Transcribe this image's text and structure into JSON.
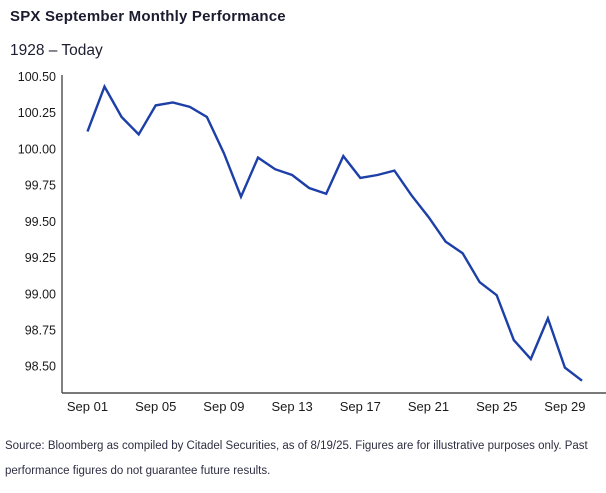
{
  "header": {
    "title": "SPX September Monthly Performance",
    "subtitle": "1928 – Today"
  },
  "footer": {
    "line1": "Source: Bloomberg as compiled by Citadel Securities, as of 8/19/25. Figures are for illustrative purposes only. Past",
    "line2": "performance figures do not guarantee future results."
  },
  "colors": {
    "line": "#1c3fa8",
    "axis": "#4d4d4d",
    "tick_text": "#1a1a1a",
    "title_text": "#1b1b30",
    "footer_text": "#2e2e42"
  },
  "chart_data": {
    "type": "line",
    "title": "SPX September Monthly Performance",
    "subtitle": "1928 – Today",
    "xlabel": "",
    "ylabel": "",
    "x_unit": "day of September",
    "x_days": [
      1,
      2,
      3,
      4,
      5,
      6,
      7,
      8,
      9,
      10,
      11,
      12,
      13,
      14,
      15,
      16,
      17,
      18,
      19,
      20,
      21,
      22,
      23,
      24,
      25,
      26,
      27,
      28,
      29,
      30
    ],
    "series": [
      {
        "name": "SPX",
        "values": [
          100.12,
          100.43,
          100.22,
          100.1,
          100.3,
          100.32,
          100.29,
          100.22,
          99.97,
          99.67,
          99.94,
          99.86,
          99.82,
          99.73,
          99.69,
          99.95,
          99.8,
          99.82,
          99.85,
          99.68,
          99.53,
          99.36,
          99.28,
          99.08,
          98.99,
          98.68,
          98.55,
          98.83,
          98.49,
          98.4
        ]
      }
    ],
    "x_tick_days": [
      1,
      5,
      9,
      13,
      17,
      21,
      25,
      29
    ],
    "x_tick_labels": [
      "Sep 01",
      "Sep 05",
      "Sep 09",
      "Sep 13",
      "Sep 17",
      "Sep 21",
      "Sep 25",
      "Sep 29"
    ],
    "y_ticks": [
      100.5,
      100.25,
      100.0,
      99.75,
      99.5,
      99.25,
      99.0,
      98.75,
      98.5
    ],
    "y_tick_decimals": 2,
    "ylim": [
      98.315,
      100.51
    ],
    "xlim_days": [
      1,
      30
    ],
    "grid": false,
    "legend": false,
    "line_color": "#1c3fa8"
  }
}
